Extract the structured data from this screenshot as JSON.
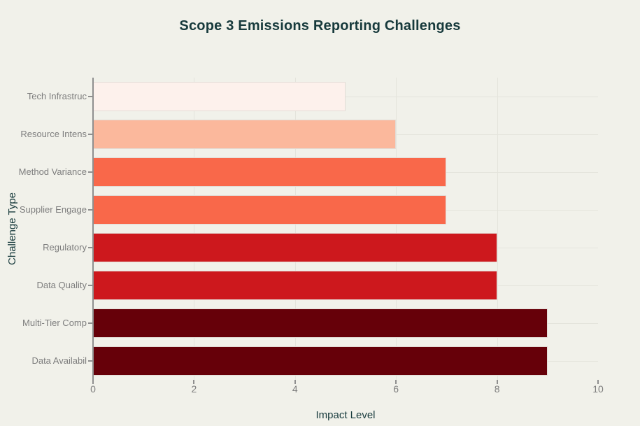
{
  "chart_data": {
    "type": "bar",
    "orientation": "horizontal",
    "title": "Scope 3 Emissions Reporting Challenges",
    "xlabel": "Impact Level",
    "ylabel": "Challenge Type",
    "categories": [
      "Tech Infrastruc",
      "Resource Intens",
      "Method Variance",
      "Supplier Engage",
      "Regulatory",
      "Data Quality",
      "Multi-Tier Comp",
      "Data Availabil"
    ],
    "values": [
      5,
      6,
      7,
      7,
      8,
      8,
      9,
      9
    ],
    "bar_colors": [
      "#fdf1ec",
      "#fbb89c",
      "#f9684a",
      "#f9684a",
      "#cd181d",
      "#cd181d",
      "#660009",
      "#660009"
    ],
    "xlim": [
      0,
      10
    ],
    "x_ticks": [
      0,
      2,
      4,
      6,
      8,
      10
    ],
    "x_gridlines": [
      2,
      4,
      6,
      8
    ],
    "grid": true,
    "legend": false
  },
  "colors": {
    "background": "#f1f1ea",
    "title_text": "#173a3c",
    "tick_label_text": "#7e7e7e",
    "gridline": "#e4e4dc",
    "axis_line": "#8f8f8f",
    "bar_border": "#e3dcd6"
  }
}
